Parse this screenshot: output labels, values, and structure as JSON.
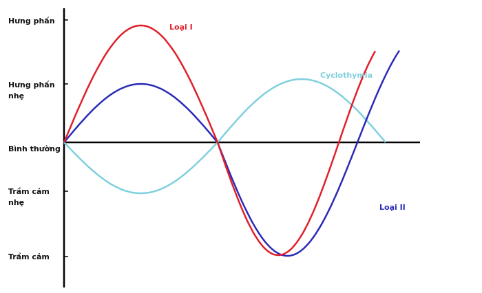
{
  "diagram": {
    "y_levels": [
      {
        "lines": [
          "Hưng phấn"
        ]
      },
      {
        "lines": [
          "Hưng phấn",
          "nhẹ"
        ]
      },
      {
        "lines": [
          "Bình thường"
        ]
      },
      {
        "lines": [
          "Trầm cảm",
          "nhẹ"
        ]
      },
      {
        "lines": [
          "Trầm cảm"
        ]
      }
    ],
    "series": [
      {
        "label": "Loại I",
        "color": "#e0202a"
      },
      {
        "label": "Loại II",
        "color": "#2a2ab8"
      },
      {
        "label": "Cyclothymia",
        "color": "#7fd0de"
      }
    ],
    "axis_color": "#000000"
  }
}
